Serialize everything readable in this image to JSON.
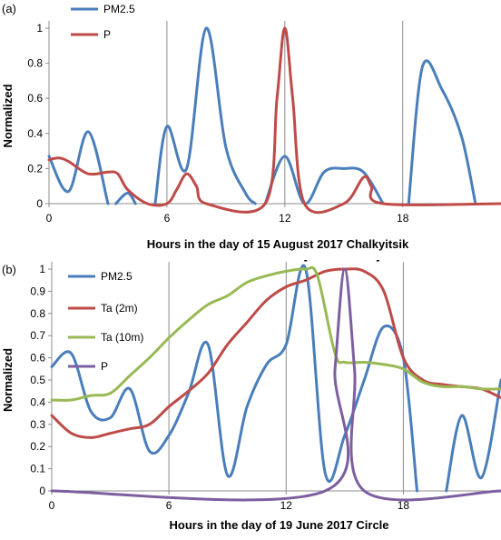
{
  "chart_data": [
    {
      "panel_label": "(a)",
      "type": "line",
      "title": "",
      "xlabel": "Hours in the day of 15 August 2017 Chalkyitsik",
      "ylabel": "Normalized",
      "xlim": [
        0,
        23
      ],
      "ylim": [
        0,
        1
      ],
      "x_ticks": [
        "0",
        "6",
        "12",
        "18"
      ],
      "y_ticks": [
        "0",
        "0.2",
        "0.4",
        "0.6",
        "0.8",
        "1"
      ],
      "grid": "vertical lines at hours 6, 12 and 18",
      "legend": "top-left",
      "series": [
        {
          "name": "PM2.5",
          "color": "#4a7ebb",
          "segments": [
            [
              [
                0,
                0.27
              ],
              [
                1,
                0.07
              ],
              [
                2,
                0.41
              ],
              [
                3,
                0.0
              ]
            ],
            [
              [
                3.4,
                0.0
              ],
              [
                4,
                0.06
              ],
              [
                4.4,
                0.0
              ]
            ],
            [
              [
                5.4,
                0.0
              ],
              [
                6,
                0.44
              ],
              [
                7,
                0.2
              ],
              [
                8,
                1.0
              ],
              [
                9,
                0.32
              ],
              [
                10,
                0.06
              ],
              [
                10.5,
                0.0
              ]
            ],
            [
              [
                11,
                0.0
              ],
              [
                12,
                0.27
              ],
              [
                13,
                0.0
              ],
              [
                14,
                0.18
              ],
              [
                15,
                0.2
              ],
              [
                16,
                0.18
              ],
              [
                17,
                0.0
              ]
            ],
            [
              [
                18.3,
                0.0
              ],
              [
                19,
                0.78
              ],
              [
                20,
                0.65
              ],
              [
                21,
                0.38
              ],
              [
                21.7,
                0.0
              ]
            ]
          ]
        },
        {
          "name": "P",
          "color": "#be4b48",
          "points": [
            [
              0,
              0.25
            ],
            [
              0.5,
              0.26
            ],
            [
              1,
              0.24
            ],
            [
              2,
              0.17
            ],
            [
              3,
              0.18
            ],
            [
              3.5,
              0.17
            ],
            [
              4,
              0.08
            ],
            [
              5,
              0.0
            ],
            [
              6,
              0.0
            ],
            [
              6.5,
              0.08
            ],
            [
              7,
              0.17
            ],
            [
              7.5,
              0.1
            ],
            [
              8,
              0.0
            ],
            [
              11,
              0.0
            ],
            [
              11.6,
              0.6
            ],
            [
              12,
              1.0
            ],
            [
              12.4,
              0.6
            ],
            [
              13,
              0.0
            ],
            [
              15,
              0.0
            ],
            [
              16,
              0.15
            ],
            [
              16.4,
              0.1
            ],
            [
              17,
              0.0
            ],
            [
              23,
              0.0
            ]
          ]
        }
      ]
    },
    {
      "panel_label": "(b)",
      "type": "line",
      "title": "",
      "xlabel": "Hours in the day of 19 June 2017 Circle",
      "ylabel": "Normalized",
      "xlim": [
        0,
        23
      ],
      "ylim": [
        0,
        1
      ],
      "x_ticks": [
        "0",
        "6",
        "12",
        "18"
      ],
      "y_ticks": [
        "0",
        "0.1",
        "0.2",
        "0.3",
        "0.4",
        "0.5",
        "0.6",
        "0.7",
        "0.8",
        "0.9",
        "1"
      ],
      "grid": "vertical lines at hours 6, 12 and 18",
      "legend": "top-left",
      "annotations": [
        "-",
        "-"
      ],
      "series": [
        {
          "name": "PM2.5",
          "color": "#4a7ebb",
          "segments": [
            [
              [
                0,
                0.56
              ],
              [
                1,
                0.62
              ],
              [
                2,
                0.36
              ],
              [
                3,
                0.33
              ],
              [
                4,
                0.46
              ],
              [
                5,
                0.18
              ],
              [
                6,
                0.25
              ],
              [
                7,
                0.44
              ],
              [
                8,
                0.66
              ],
              [
                9,
                0.07
              ],
              [
                10,
                0.38
              ],
              [
                11,
                0.57
              ],
              [
                12,
                0.66
              ],
              [
                13,
                1.0
              ],
              [
                14,
                0.08
              ],
              [
                15,
                0.25
              ],
              [
                16,
                0.5
              ],
              [
                17,
                0.74
              ],
              [
                18,
                0.6
              ],
              [
                18.7,
                0.0
              ]
            ],
            [
              [
                20.2,
                0.0
              ],
              [
                21,
                0.34
              ],
              [
                22,
                0.06
              ],
              [
                23,
                0.5
              ]
            ]
          ]
        },
        {
          "name": "Ta  (2m)",
          "color": "#be4b48",
          "points": [
            [
              0,
              0.34
            ],
            [
              1,
              0.26
            ],
            [
              2,
              0.24
            ],
            [
              3,
              0.26
            ],
            [
              4,
              0.28
            ],
            [
              5,
              0.3
            ],
            [
              6,
              0.38
            ],
            [
              7,
              0.45
            ],
            [
              8,
              0.53
            ],
            [
              9,
              0.66
            ],
            [
              10,
              0.76
            ],
            [
              11,
              0.86
            ],
            [
              12,
              0.92
            ],
            [
              13,
              0.95
            ],
            [
              14,
              0.99
            ],
            [
              15,
              1.0
            ],
            [
              16,
              0.99
            ],
            [
              17,
              0.9
            ],
            [
              18,
              0.6
            ],
            [
              19,
              0.5
            ],
            [
              20,
              0.48
            ],
            [
              21,
              0.47
            ],
            [
              22,
              0.46
            ],
            [
              23,
              0.42
            ]
          ]
        },
        {
          "name": "Ta  (10m)",
          "color": "#98b954",
          "points": [
            [
              0,
              0.41
            ],
            [
              1,
              0.41
            ],
            [
              2,
              0.43
            ],
            [
              3,
              0.44
            ],
            [
              4,
              0.52
            ],
            [
              5,
              0.6
            ],
            [
              6,
              0.69
            ],
            [
              7,
              0.77
            ],
            [
              8,
              0.84
            ],
            [
              9,
              0.88
            ],
            [
              10,
              0.94
            ],
            [
              11,
              0.97
            ],
            [
              12,
              0.99
            ],
            [
              13,
              1.0
            ],
            [
              13.6,
              0.97
            ],
            [
              14.5,
              0.62
            ],
            [
              15,
              0.58
            ],
            [
              16,
              0.58
            ],
            [
              17,
              0.57
            ],
            [
              18,
              0.55
            ],
            [
              19,
              0.49
            ],
            [
              20,
              0.47
            ],
            [
              21,
              0.47
            ],
            [
              22,
              0.46
            ],
            [
              23,
              0.46
            ]
          ]
        },
        {
          "name": "P",
          "color": "#7d5fa0",
          "points": [
            [
              0,
              0.0
            ],
            [
              14,
              0.0
            ],
            [
              14.5,
              0.55
            ],
            [
              15,
              1.0
            ],
            [
              15.5,
              0.55
            ],
            [
              16,
              0.0
            ],
            [
              23,
              0.0
            ]
          ]
        }
      ]
    }
  ]
}
